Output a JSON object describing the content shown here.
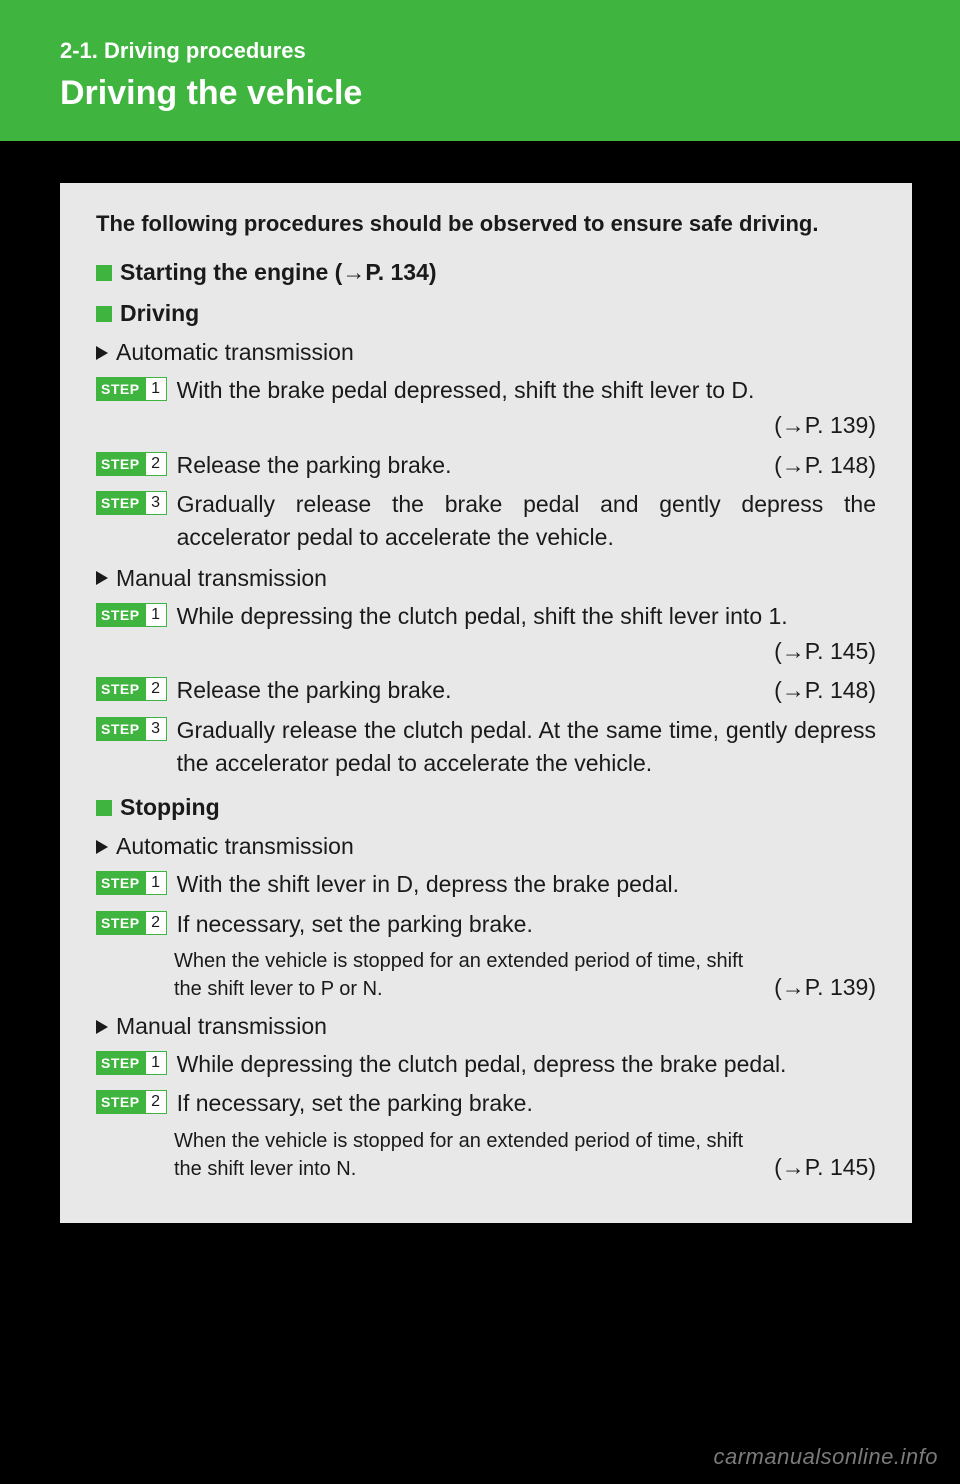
{
  "header": {
    "section": "2-1.  Driving procedures",
    "title": "Driving the vehicle"
  },
  "intro": "The following procedures should be observed to ensure safe driving.",
  "stepLabel": "STEP",
  "sections": {
    "starting": {
      "title": "Starting the engine (",
      "ref": "P. 134)"
    },
    "driving": {
      "title": "Driving",
      "auto": {
        "label": "Automatic transmission",
        "steps": [
          {
            "n": "1",
            "text": "With the brake pedal depressed, shift the shift lever to D.",
            "ref": "P. 139)"
          },
          {
            "n": "2",
            "text": "Release the parking brake.",
            "ref": "P. 148)"
          },
          {
            "n": "3",
            "text": "Gradually release the brake pedal and gently depress the accelerator pedal to accelerate the vehicle."
          }
        ]
      },
      "manual": {
        "label": "Manual transmission",
        "steps": [
          {
            "n": "1",
            "text": "While depressing the clutch pedal, shift the shift lever into 1.",
            "ref": "P. 145)"
          },
          {
            "n": "2",
            "text": "Release the parking brake.",
            "ref": "P. 148)"
          },
          {
            "n": "3",
            "text": "Gradually release the clutch pedal. At the same time, gently depress the accelerator pedal to accelerate the vehicle."
          }
        ]
      }
    },
    "stopping": {
      "title": "Stopping",
      "auto": {
        "label": "Automatic transmission",
        "steps": [
          {
            "n": "1",
            "text": "With the shift lever in D, depress the brake pedal."
          },
          {
            "n": "2",
            "text": "If necessary, set the parking brake.",
            "note": "When the vehicle is stopped for an extended period of time, shift the shift lever to P or N.",
            "noteRef": "P. 139)"
          }
        ]
      },
      "manual": {
        "label": "Manual transmission",
        "steps": [
          {
            "n": "1",
            "text": "While depressing the clutch pedal, depress the brake pedal."
          },
          {
            "n": "2",
            "text": "If necessary, set the parking brake.",
            "note": "When the vehicle is stopped for an extended period of time, shift the shift lever into N.",
            "noteRef": "P. 145)"
          }
        ]
      }
    }
  },
  "watermark": "carmanualsonline.info",
  "colors": {
    "green": "#3fb43f",
    "bg": "#000000",
    "box": "#e8e8e8",
    "text": "#1a1a1a"
  }
}
